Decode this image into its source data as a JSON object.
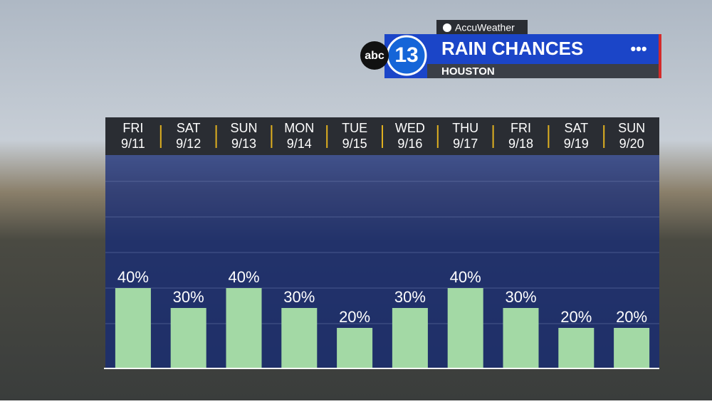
{
  "brand": "AccuWeather",
  "station": {
    "network": "abc",
    "channel": "13"
  },
  "menu": "•••",
  "chart_data": {
    "type": "bar",
    "title": "RAIN CHANCES",
    "subtitle": "HOUSTON",
    "categories": [
      "FRI",
      "SAT",
      "SUN",
      "MON",
      "TUE",
      "WED",
      "THU",
      "FRI",
      "SAT",
      "SUN"
    ],
    "dates": [
      "9/11",
      "9/12",
      "9/13",
      "9/14",
      "9/15",
      "9/16",
      "9/17",
      "9/18",
      "9/19",
      "9/20"
    ],
    "values": [
      40,
      30,
      40,
      30,
      20,
      30,
      40,
      30,
      20,
      20
    ],
    "value_labels": [
      "40%",
      "30%",
      "40%",
      "30%",
      "20%",
      "30%",
      "40%",
      "30%",
      "20%",
      "20%"
    ],
    "color": "#a3d9a5",
    "ylim": [
      0,
      100
    ]
  }
}
